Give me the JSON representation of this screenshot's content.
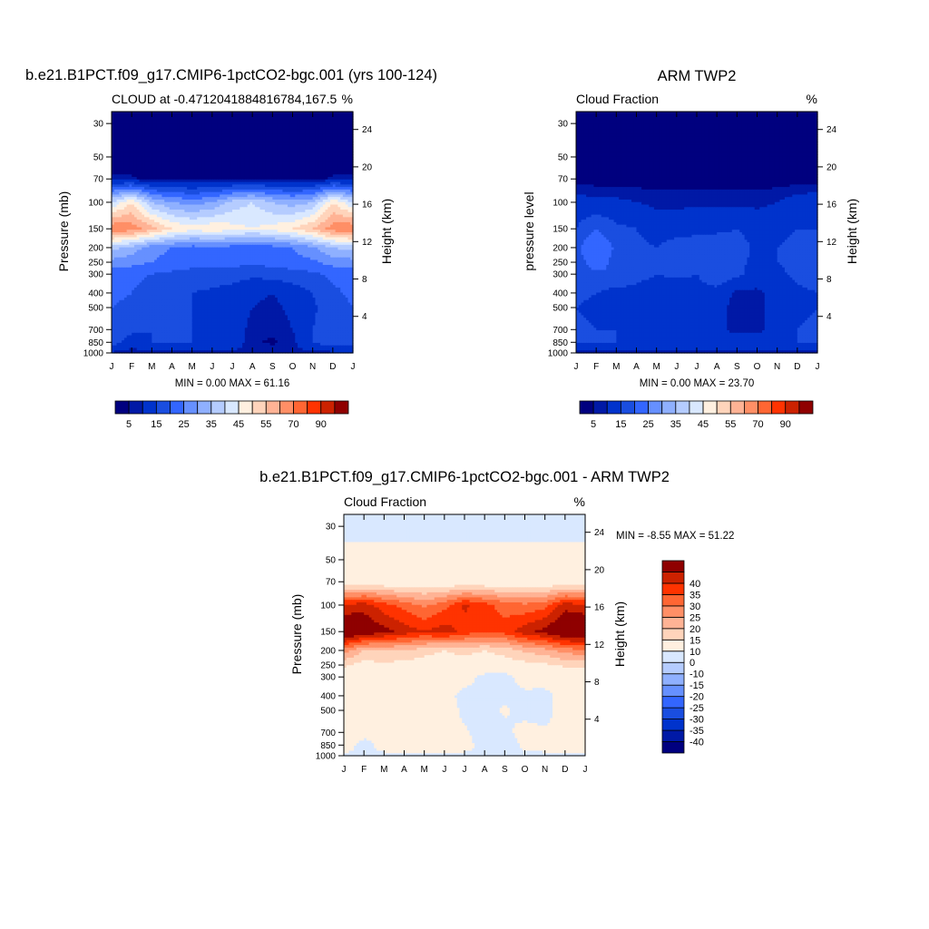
{
  "panels": [
    {
      "name": "model",
      "title": "b.e21.B1PCT.f09_g17.CMIP6-1pctCO2-bgc.001 (yrs 100-124)",
      "left_label": "CLOUD at -0.4712041884816784,167.5",
      "right_label": "%",
      "ylabel": "Pressure (mb)",
      "y2label": "Height (km)",
      "stats": "MIN =   0.00 MAX =  61.16",
      "colorbar": "abs"
    },
    {
      "name": "obs",
      "title": "ARM TWP2",
      "left_label": "Cloud Fraction",
      "right_label": "%",
      "ylabel": "pressure level",
      "y2label": "Height (km)",
      "stats": "MIN =   0.00 MAX =  23.70",
      "colorbar": "abs"
    },
    {
      "name": "diff",
      "title": "b.e21.B1PCT.f09_g17.CMIP6-1pctCO2-bgc.001 - ARM TWP2",
      "left_label": "Cloud Fraction",
      "right_label": "%",
      "ylabel": "Pressure (mb)",
      "y2label": "Height (km)",
      "stats": "MIN =  -8.55 MAX =  51.22",
      "colorbar": "diff"
    }
  ],
  "axes": {
    "x_ticks": [
      "J",
      "F",
      "M",
      "A",
      "M",
      "J",
      "J",
      "A",
      "S",
      "O",
      "N",
      "D",
      "J"
    ],
    "pressure_ticks": [
      30,
      50,
      70,
      100,
      150,
      200,
      250,
      300,
      400,
      500,
      700,
      850,
      1000
    ],
    "pressure_range": [
      25,
      1000
    ],
    "height_ticks": [
      4,
      8,
      12,
      16,
      20,
      24
    ]
  },
  "colorbars": {
    "abs": {
      "colors": [
        "#00007f",
        "#0019a6",
        "#0033cc",
        "#1a4ee0",
        "#3366ff",
        "#6690ff",
        "#8fb0ff",
        "#b5ccff",
        "#d9e8ff",
        "#fff0e0",
        "#ffd4bb",
        "#ffb395",
        "#ff8f66",
        "#ff6633",
        "#ff3300",
        "#cc2200",
        "#8f0000"
      ],
      "labels": [
        "5",
        "15",
        "25",
        "35",
        "45",
        "55",
        "70",
        "90"
      ]
    },
    "diff": {
      "colors": [
        "#00007f",
        "#0019a6",
        "#0033cc",
        "#1a4ee0",
        "#3366ff",
        "#6690ff",
        "#8fb0ff",
        "#b5ccff",
        "#d9e8ff",
        "#fff0e0",
        "#ffd4bb",
        "#ffb395",
        "#ff8f66",
        "#ff6633",
        "#ff3300",
        "#cc2200",
        "#8f0000"
      ],
      "labels": [
        "-40",
        "-35",
        "-30",
        "-25",
        "-20",
        "-15",
        "-10",
        "0",
        "10",
        "15",
        "20",
        "25",
        "30",
        "35",
        "40"
      ]
    }
  },
  "chart_data": [
    {
      "type": "heatmap",
      "title": "b.e21.B1PCT.f09_g17.CMIP6-1pctCO2-bgc.001 (yrs 100-124)",
      "xlabel": "",
      "ylabel": "Pressure (mb)",
      "x": [
        "J",
        "F",
        "M",
        "A",
        "M",
        "J",
        "J",
        "A",
        "S",
        "O",
        "N",
        "D",
        "J"
      ],
      "y_pressure": [
        30,
        50,
        70,
        100,
        150,
        200,
        250,
        300,
        400,
        500,
        700,
        850,
        1000
      ],
      "z": [
        [
          0,
          0,
          0,
          0,
          0,
          0,
          0,
          0,
          0,
          0,
          0,
          0,
          0
        ],
        [
          0,
          0,
          0,
          0,
          0,
          0,
          0,
          0,
          0,
          0,
          0,
          0,
          0
        ],
        [
          3,
          3,
          1,
          1,
          1,
          1,
          1,
          1,
          1,
          1,
          1,
          3,
          3
        ],
        [
          35,
          45,
          30,
          25,
          23,
          25,
          32,
          35,
          30,
          27,
          30,
          45,
          35
        ],
        [
          60,
          58,
          52,
          45,
          42,
          44,
          42,
          40,
          42,
          45,
          50,
          58,
          60
        ],
        [
          32,
          28,
          22,
          20,
          18,
          18,
          18,
          17,
          18,
          20,
          24,
          30,
          32
        ],
        [
          23,
          22,
          20,
          18,
          17,
          17,
          17,
          16,
          17,
          18,
          19,
          22,
          23
        ],
        [
          17,
          16,
          15,
          14,
          13,
          13,
          12,
          11,
          12,
          13,
          14,
          16,
          17
        ],
        [
          16,
          15,
          13,
          12,
          10,
          9,
          8,
          6,
          5,
          7,
          10,
          14,
          16
        ],
        [
          15,
          14,
          13,
          12,
          10,
          8,
          7,
          5,
          4,
          6,
          9,
          13,
          15
        ],
        [
          15,
          12,
          10,
          11,
          10,
          9,
          7,
          4,
          3,
          5,
          10,
          14,
          15
        ],
        [
          13,
          6,
          10,
          11,
          10,
          10,
          8,
          3,
          2,
          4,
          10,
          13,
          13
        ],
        [
          4,
          4,
          4,
          4,
          4,
          4,
          4,
          4,
          4,
          4,
          4,
          4,
          4
        ]
      ]
    },
    {
      "type": "heatmap",
      "title": "ARM TWP2",
      "xlabel": "",
      "ylabel": "pressure level",
      "x": [
        "J",
        "F",
        "M",
        "A",
        "M",
        "J",
        "J",
        "A",
        "S",
        "O",
        "N",
        "D",
        "J"
      ],
      "y_pressure": [
        30,
        50,
        70,
        100,
        150,
        200,
        250,
        300,
        400,
        500,
        700,
        850,
        1000
      ],
      "z": [
        [
          0,
          0,
          0,
          0,
          0,
          0,
          0,
          0,
          0,
          0,
          0,
          0,
          0
        ],
        [
          0,
          0,
          0,
          0,
          0,
          0,
          0,
          0,
          0,
          0,
          0,
          0,
          0
        ],
        [
          1,
          1,
          1,
          1,
          1,
          1,
          1,
          1,
          1,
          1,
          1,
          1,
          1
        ],
        [
          7,
          6,
          6,
          5,
          4,
          4,
          4,
          4,
          4,
          4,
          5,
          7,
          8
        ],
        [
          10,
          15,
          11,
          10,
          8,
          8,
          9,
          9,
          10,
          8,
          9,
          10,
          10
        ],
        [
          14,
          20,
          14,
          11,
          10,
          12,
          12,
          13,
          12,
          9,
          10,
          11,
          12
        ],
        [
          12,
          18,
          13,
          11,
          12,
          13,
          14,
          12,
          11,
          9,
          10,
          11,
          11
        ],
        [
          13,
          14,
          15,
          12,
          10,
          11,
          10,
          14,
          11,
          8,
          9,
          11,
          12
        ],
        [
          11,
          10,
          8,
          8,
          7,
          7,
          8,
          8,
          4,
          4,
          7,
          9,
          10
        ],
        [
          10,
          9,
          8,
          8,
          7,
          7,
          9,
          7,
          3,
          3,
          8,
          9,
          10
        ],
        [
          11,
          10,
          10,
          5,
          7,
          9,
          6,
          7,
          3,
          3,
          9,
          10,
          11
        ],
        [
          10,
          10,
          10,
          9,
          9,
          9,
          9,
          9,
          9,
          9,
          9,
          10,
          10
        ],
        [
          4,
          4,
          4,
          4,
          4,
          4,
          4,
          4,
          4,
          4,
          4,
          4,
          4
        ]
      ]
    },
    {
      "type": "heatmap",
      "title": "b.e21.B1PCT.f09_g17.CMIP6-1pctCO2-bgc.001 - ARM TWP2",
      "xlabel": "",
      "ylabel": "Pressure (mb)",
      "x": [
        "J",
        "F",
        "M",
        "A",
        "M",
        "J",
        "J",
        "A",
        "S",
        "O",
        "N",
        "D",
        "J"
      ],
      "y_pressure": [
        30,
        50,
        70,
        100,
        150,
        200,
        250,
        300,
        400,
        500,
        700,
        850,
        1000
      ],
      "z": [
        [
          -3,
          -3,
          -3,
          -3,
          -3,
          -3,
          -3,
          -3,
          -3,
          -3,
          -3,
          -3,
          -3
        ],
        [
          3,
          3,
          3,
          3,
          3,
          3,
          3,
          3,
          3,
          3,
          3,
          3,
          3
        ],
        [
          5,
          5,
          5,
          5,
          5,
          5,
          5,
          5,
          5,
          5,
          5,
          5,
          5
        ],
        [
          35,
          38,
          32,
          28,
          24,
          28,
          36,
          32,
          28,
          26,
          28,
          38,
          35
        ],
        [
          50,
          45,
          42,
          38,
          35,
          38,
          33,
          31,
          32,
          38,
          42,
          48,
          50
        ],
        [
          22,
          15,
          14,
          15,
          12,
          10,
          12,
          10,
          12,
          16,
          18,
          22,
          24
        ],
        [
          11,
          8,
          9,
          8,
          7,
          7,
          6,
          6,
          7,
          8,
          9,
          11,
          12
        ],
        [
          5,
          3,
          2,
          3,
          4,
          3,
          3,
          -2,
          -3,
          4,
          5,
          5,
          5
        ],
        [
          5,
          5,
          5,
          4,
          5,
          2,
          -2,
          -2,
          -2,
          -2,
          -3,
          4,
          5
        ],
        [
          5,
          4,
          5,
          6,
          4,
          5,
          -2,
          -2,
          1,
          -3,
          -3,
          4,
          6
        ],
        [
          4,
          2,
          2,
          5,
          4,
          2,
          1,
          -3,
          -2,
          3,
          1,
          4,
          4
        ],
        [
          3,
          -2,
          2,
          3,
          2,
          2,
          2,
          -2,
          -3,
          1,
          2,
          3,
          3
        ],
        [
          -1,
          -1,
          -1,
          -1,
          -1,
          -1,
          -1,
          -1,
          -1,
          -1,
          -1,
          -1,
          -1
        ]
      ]
    }
  ]
}
